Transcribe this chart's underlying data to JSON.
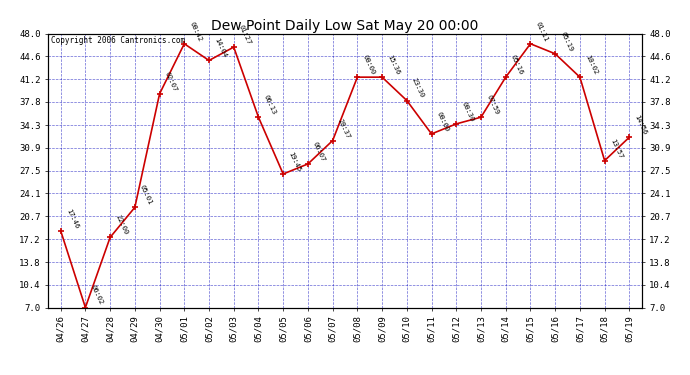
{
  "title": "Dew Point Daily Low Sat May 20 00:00",
  "copyright": "Copyright 2006 Cantronics.com",
  "x_labels": [
    "04/26",
    "04/27",
    "04/28",
    "04/29",
    "04/30",
    "05/01",
    "05/02",
    "05/03",
    "05/04",
    "05/05",
    "05/06",
    "05/07",
    "05/08",
    "05/09",
    "05/10",
    "05/11",
    "05/12",
    "05/13",
    "05/14",
    "05/15",
    "05/16",
    "05/17",
    "05/18",
    "05/19"
  ],
  "y_values": [
    18.5,
    7.0,
    17.5,
    22.0,
    39.0,
    46.5,
    44.0,
    46.0,
    35.5,
    27.0,
    28.5,
    32.0,
    41.5,
    41.5,
    38.0,
    33.0,
    34.5,
    35.5,
    41.5,
    46.5,
    45.0,
    41.5,
    29.0,
    32.5
  ],
  "annotations": [
    "17:46",
    "06:02",
    "22:00",
    "05:01",
    "02:07",
    "00:42",
    "14:04",
    "01:27",
    "06:13",
    "19:45",
    "06:07",
    "20:37",
    "00:00",
    "15:36",
    "23:30",
    "00:00",
    "00:30",
    "07:59",
    "05:16",
    "01:11",
    "05:19",
    "10:02",
    "13:57",
    "14:56"
  ],
  "ylim_min": 7.0,
  "ylim_max": 48.0,
  "yticks": [
    7.0,
    10.4,
    13.8,
    17.2,
    20.7,
    24.1,
    27.5,
    30.9,
    34.3,
    37.8,
    41.2,
    44.6,
    48.0
  ],
  "line_color": "#cc0000",
  "marker_color": "#cc0000",
  "bg_color": "#ffffff",
  "plot_bg_color": "#ffffff",
  "grid_color": "#0000bb",
  "border_color": "#000000",
  "title_color": "#000000",
  "annotation_color": "#000000"
}
